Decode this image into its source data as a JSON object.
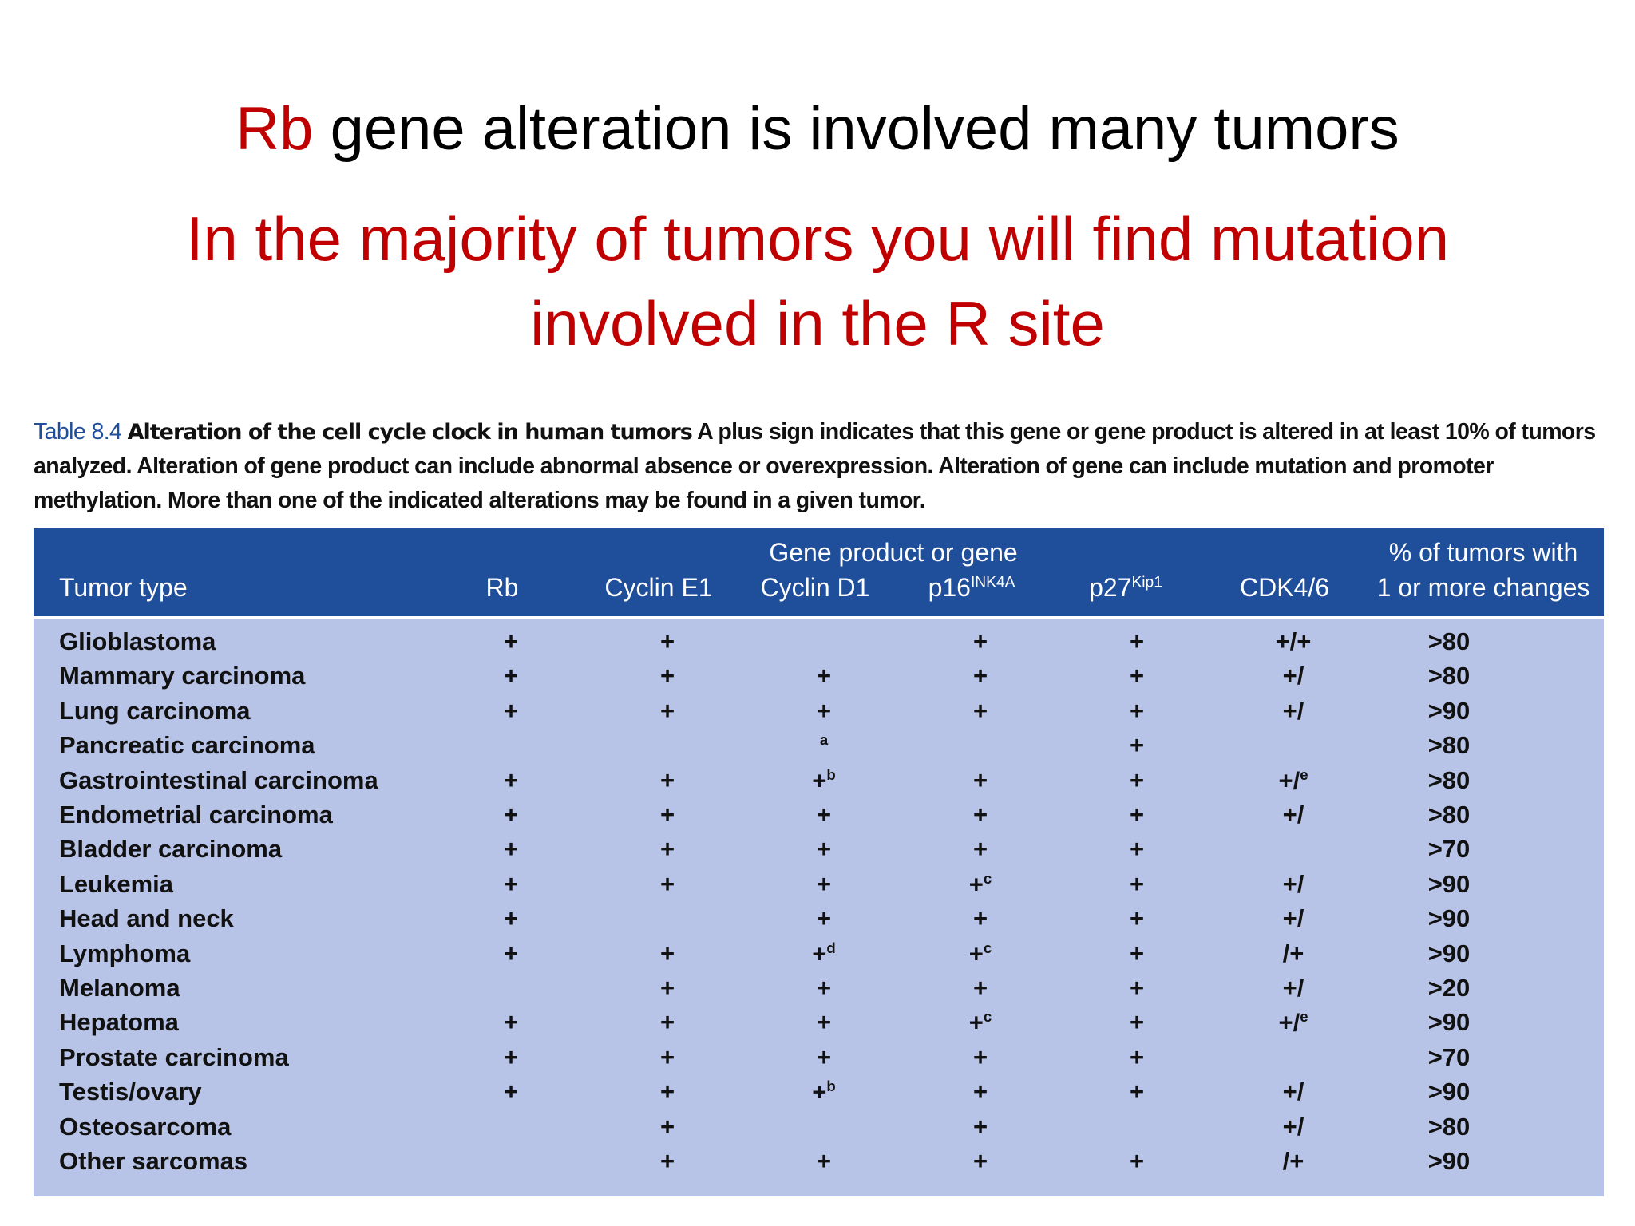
{
  "title": {
    "highlight": "Rb",
    "rest": "gene alteration is involved many tumors"
  },
  "subtitle": {
    "lines": [
      "In the majority of tumors you will find mutation",
      "involved in the R site"
    ]
  },
  "caption": {
    "label": "Table 8.4",
    "heading": "Alteration of the cell cycle clock in human tumors",
    "text": "A plus sign indicates that this gene or gene product is altered in at least 10% of tumors analyzed. Alteration of gene product can include abnormal absence or overexpression. Alteration of gene can include mutation and promoter methylation. More than one of the indicated alterations may be found in a given tumor."
  },
  "table": {
    "group_header": "Gene product or gene",
    "columns": [
      "Tumor type",
      "Rb",
      "Cyclin E1",
      "Cyclin D1",
      {
        "text": "p16",
        "sup": "INK4A"
      },
      {
        "text": "p27",
        "sup": "Kip1"
      },
      "CDK4/6",
      {
        "lines": [
          "% of tumors with",
          "1 or more changes"
        ]
      }
    ],
    "rows": [
      {
        "tumor": "Glioblastoma",
        "cells": [
          "+",
          "+",
          null,
          "+",
          "+",
          "+/+",
          ">80"
        ]
      },
      {
        "tumor": "Mammary carcinoma",
        "cells": [
          "+",
          "+",
          "+",
          "+",
          "+",
          "+/",
          ">80"
        ]
      },
      {
        "tumor": "Lung carcinoma",
        "cells": [
          "+",
          "+",
          "+",
          "+",
          "+",
          "+/",
          ">90"
        ]
      },
      {
        "tumor": "Pancreatic carcinoma",
        "cells": [
          null,
          null,
          {
            "sup": "a"
          },
          null,
          "+",
          null,
          ">80"
        ]
      },
      {
        "tumor": "Gastrointestinal carcinoma",
        "cells": [
          "+",
          "+",
          {
            "text": "+",
            "sup": "b"
          },
          "+",
          "+",
          {
            "text": "+/",
            "sup": "e"
          },
          ">80"
        ]
      },
      {
        "tumor": "Endometrial carcinoma",
        "cells": [
          "+",
          "+",
          "+",
          "+",
          "+",
          "+/",
          ">80"
        ]
      },
      {
        "tumor": "Bladder carcinoma",
        "cells": [
          "+",
          "+",
          "+",
          "+",
          "+",
          null,
          ">70"
        ]
      },
      {
        "tumor": "Leukemia",
        "cells": [
          "+",
          "+",
          "+",
          {
            "text": "+",
            "sup": "c"
          },
          "+",
          "+/",
          ">90"
        ]
      },
      {
        "tumor": "Head and neck",
        "cells": [
          "+",
          null,
          "+",
          "+",
          "+",
          "+/",
          ">90"
        ]
      },
      {
        "tumor": "Lymphoma",
        "cells": [
          "+",
          "+",
          {
            "text": "+",
            "sup": "d"
          },
          {
            "text": "+",
            "sup": "c"
          },
          "+",
          "/+",
          ">90"
        ]
      },
      {
        "tumor": "Melanoma",
        "cells": [
          null,
          "+",
          "+",
          "+",
          "+",
          "+/",
          ">20"
        ]
      },
      {
        "tumor": "Hepatoma",
        "cells": [
          "+",
          "+",
          "+",
          {
            "text": "+",
            "sup": "c"
          },
          "+",
          {
            "text": "+/",
            "sup": "e"
          },
          ">90"
        ]
      },
      {
        "tumor": "Prostate carcinoma",
        "cells": [
          "+",
          "+",
          "+",
          "+",
          "+",
          null,
          ">70"
        ]
      },
      {
        "tumor": "Testis/ovary",
        "cells": [
          "+",
          "+",
          {
            "text": "+",
            "sup": "b"
          },
          "+",
          "+",
          "+/",
          ">90"
        ]
      },
      {
        "tumor": "Osteosarcoma",
        "cells": [
          null,
          "+",
          null,
          "+",
          null,
          "+/",
          ">80"
        ]
      },
      {
        "tumor": "Other sarcomas",
        "cells": [
          null,
          "+",
          "+",
          "+",
          "+",
          "/+",
          ">90"
        ]
      }
    ]
  }
}
